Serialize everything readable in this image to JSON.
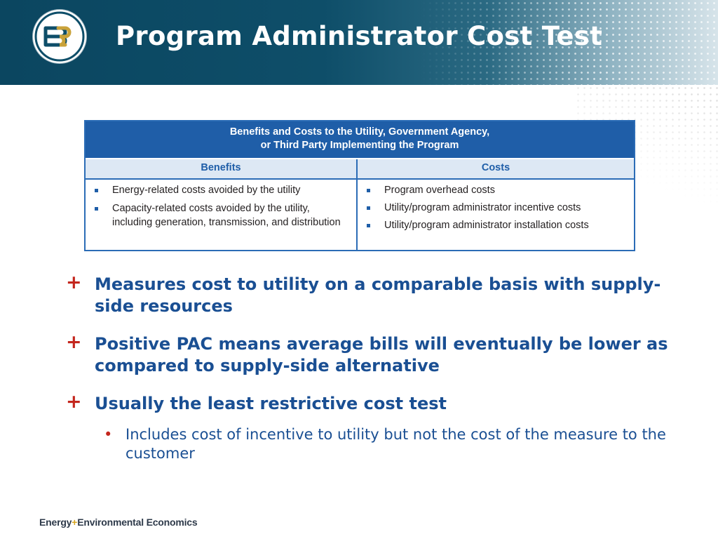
{
  "header": {
    "title": "Program Administrator Cost Test",
    "logo_icon": "e3-logo-icon"
  },
  "table": {
    "heading_line1": "Benefits and Costs to the Utility, Government Agency,",
    "heading_line2": "or Third Party Implementing the Program",
    "columns": [
      "Benefits",
      "Costs"
    ],
    "benefits": [
      "Energy-related costs avoided by the utility",
      "Capacity-related costs avoided by the utility, including generation, transmission, and distribution"
    ],
    "costs": [
      "Program overhead costs",
      "Utility/program administrator incentive costs",
      "Utility/program administrator installation costs"
    ]
  },
  "bullets": [
    {
      "marker": "+",
      "text": "Measures cost to utility on a comparable basis with supply-side resources"
    },
    {
      "marker": "+",
      "text": "Positive PAC means average bills will eventually be lower as compared to supply-side alternative"
    },
    {
      "marker": "+",
      "text": "Usually the least restrictive cost test"
    }
  ],
  "sub_bullet": {
    "marker": "•",
    "text": "Includes cost of incentive to utility but not the cost of the measure to the customer"
  },
  "footer": {
    "brand_part1": "Energy",
    "brand_plus": "+",
    "brand_part2": "Environmental Economics"
  },
  "colors": {
    "header_bg": "#0e4e69",
    "table_blue": "#1f5ea8",
    "bullet_text": "#1a4f93",
    "plus_red": "#c4261d",
    "logo_gold": "#c9a23a"
  }
}
